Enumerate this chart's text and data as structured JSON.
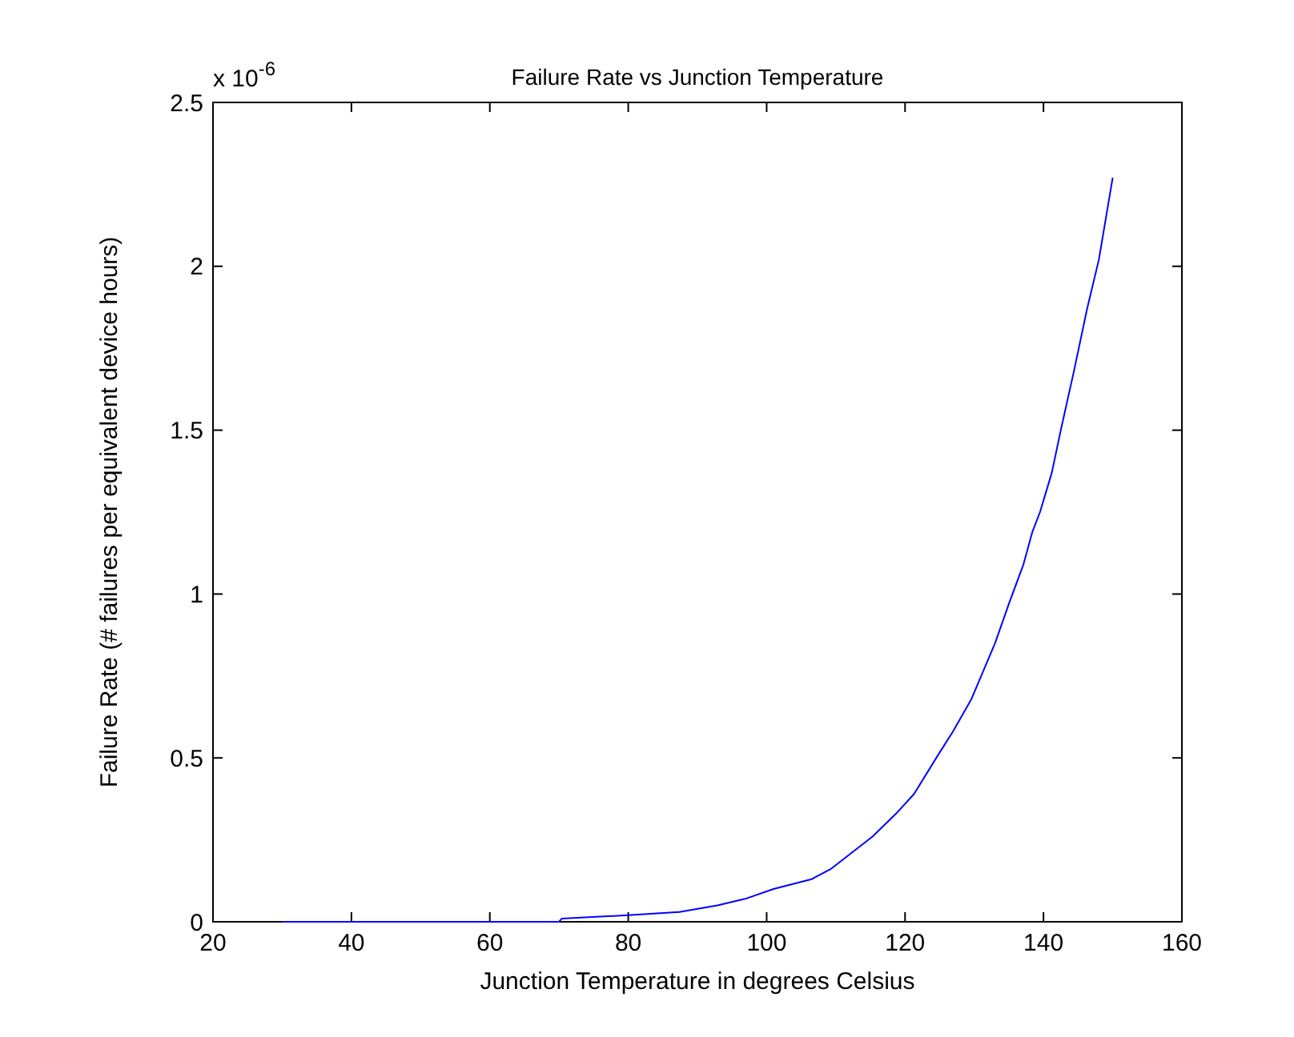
{
  "chart_data": {
    "type": "line",
    "title": "Failure Rate vs Junction Temperature",
    "xlabel": "Junction Temperature in degrees Celsius",
    "ylabel": "Failure Rate (# failures per equivalent device hours)",
    "annotations": [
      "x 10$^{-6}$"
    ],
    "x": [
      30,
      40,
      50,
      60,
      70,
      70.4,
      80,
      87.4,
      92.9,
      96.9,
      101,
      106.5,
      109.2,
      115.3,
      118.7,
      121.3,
      124.8,
      126.9,
      129.6,
      133,
      135,
      137.1,
      138.4,
      139.5,
      141.2,
      142.5,
      144.4,
      146.3,
      148,
      150
    ],
    "series": [
      {
        "color": "#0000ff",
        "values": [
          0,
          0,
          0,
          0,
          0,
          0.01,
          0.02,
          0.03,
          0.05,
          0.07,
          0.1,
          0.13,
          0.16,
          0.26,
          0.33,
          0.39,
          0.51,
          0.58,
          0.68,
          0.85,
          0.97,
          1.09,
          1.19,
          1.25,
          1.37,
          1.5,
          1.68,
          1.87,
          2.02,
          2.27
        ]
      }
    ],
    "xlim": [
      20,
      160
    ],
    "xticks": [
      20,
      40,
      60,
      80,
      100,
      120,
      140,
      160
    ],
    "ylim": [
      0,
      2.5
    ],
    "yticks": [
      0,
      0.5,
      1,
      1.5,
      2,
      2.5
    ],
    "grid": false,
    "marker": "none",
    "line_style": "solid"
  }
}
